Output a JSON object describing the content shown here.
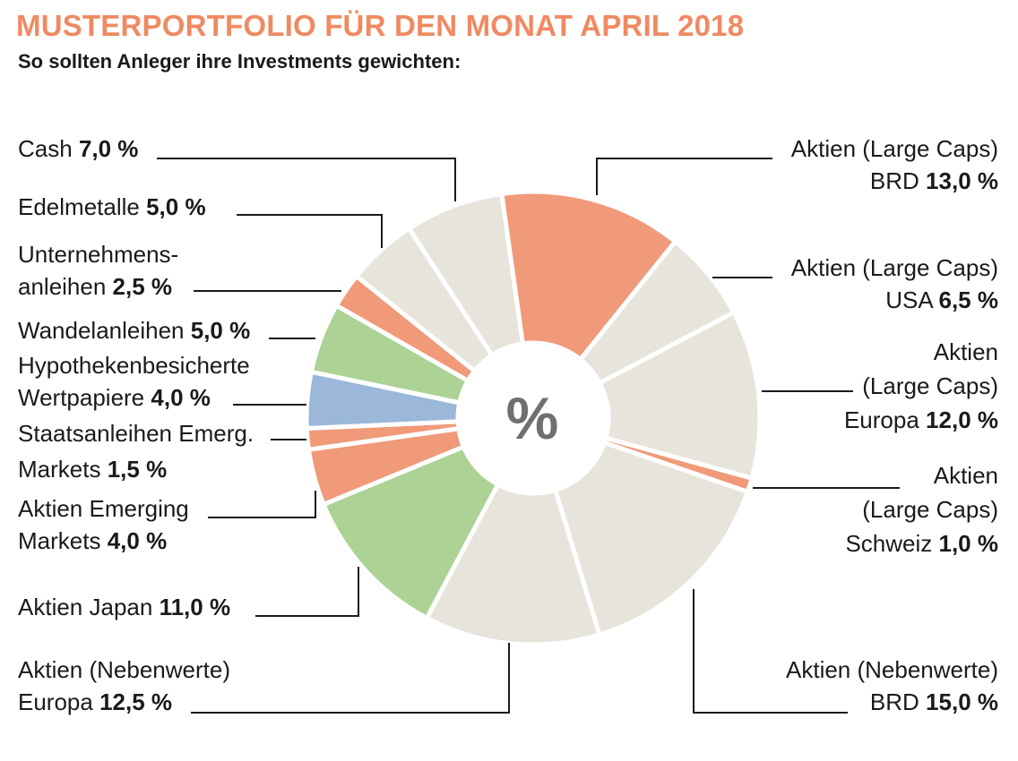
{
  "title": "MUSTERPORTFOLIO FÜR DEN MONAT APRIL 2018",
  "subtitle": "So sollten Anleger ihre Investments gewichten:",
  "center_symbol": "%",
  "colors": {
    "beige": "#e7e4db",
    "orange": "#f09a7a",
    "green": "#acd295",
    "blue": "#9bb8da",
    "line": "#1a1a1a"
  },
  "chart_data": {
    "type": "pie",
    "donut": true,
    "start": "top, clockwise",
    "slices": [
      {
        "name": "Aktien (Large Caps) BRD",
        "value": 13.0,
        "value_label": "13,0 %",
        "color": "orange"
      },
      {
        "name": "Aktien (Large Caps) USA",
        "value": 6.5,
        "value_label": "6,5 %",
        "color": "beige"
      },
      {
        "name": "Aktien (Large Caps) Europa",
        "value": 12.0,
        "value_label": "12,0 %",
        "color": "beige"
      },
      {
        "name": "Aktien (Large Caps) Schweiz",
        "value": 1.0,
        "value_label": "1,0 %",
        "color": "orange"
      },
      {
        "name": "Aktien (Nebenwerte) BRD",
        "value": 15.0,
        "value_label": "15,0 %",
        "color": "beige"
      },
      {
        "name": "Aktien (Nebenwerte) Europa",
        "value": 12.5,
        "value_label": "12,5 %",
        "color": "beige"
      },
      {
        "name": "Aktien Japan",
        "value": 11.0,
        "value_label": "11,0 %",
        "color": "green"
      },
      {
        "name": "Aktien Emerging Markets",
        "value": 4.0,
        "value_label": "4,0 %",
        "color": "orange"
      },
      {
        "name": "Staatsanleihen Emerg. Markets",
        "value": 1.5,
        "value_label": "1,5 %",
        "color": "orange"
      },
      {
        "name": "Hypothekenbesicherte Wertpapiere",
        "value": 4.0,
        "value_label": "4,0 %",
        "color": "blue"
      },
      {
        "name": "Wandelanleihen",
        "value": 5.0,
        "value_label": "5,0 %",
        "color": "green"
      },
      {
        "name": "Unternehmensanleihen",
        "value": 2.5,
        "value_label": "2,5 %",
        "color": "orange"
      },
      {
        "name": "Edelmetalle",
        "value": 5.0,
        "value_label": "5,0 %",
        "color": "beige"
      },
      {
        "name": "Cash",
        "value": 7.0,
        "value_label": "7,0 %",
        "color": "beige"
      }
    ]
  },
  "labels": {
    "large_brd": {
      "line1": "Aktien (Large Caps)",
      "line2": "BRD",
      "value": "13,0 %"
    },
    "large_usa": {
      "line1": "Aktien (Large Caps)",
      "line2": "USA",
      "value": "6,5 %"
    },
    "large_europa": {
      "line1": "Aktien",
      "line2": "(Large Caps)",
      "line3": "Europa",
      "value": "12,0 %"
    },
    "large_schweiz": {
      "line1": "Aktien",
      "line2": "(Large Caps)",
      "line3": "Schweiz",
      "value": "1,0 %"
    },
    "neben_brd": {
      "line1": "Aktien (Nebenwerte)",
      "line2": "BRD",
      "value": "15,0 %"
    },
    "neben_europa": {
      "line1": "Aktien (Nebenwerte)",
      "line2": "Europa",
      "value": "12,5 %"
    },
    "japan": {
      "line1": "Aktien Japan",
      "value": "11,0 %"
    },
    "emerging": {
      "line1": "Aktien Emerging",
      "line2": "Markets",
      "value": "4,0 %"
    },
    "staats": {
      "line1": "Staatsanleihen Emerg.",
      "line2": "Markets",
      "value": "1,5 %"
    },
    "hypo": {
      "line1": "Hypothekenbesicherte",
      "line2": "Wertpapiere",
      "value": "4,0 %"
    },
    "wandel": {
      "line1": "Wandelanleihen",
      "value": "5,0 %"
    },
    "unternehmen": {
      "line1": "Unternehmens-",
      "line2": "anleihen",
      "value": "2,5 %"
    },
    "edelmetalle": {
      "line1": "Edelmetalle",
      "value": "5,0 %"
    },
    "cash": {
      "line1": "Cash",
      "value": "7,0 %"
    }
  }
}
